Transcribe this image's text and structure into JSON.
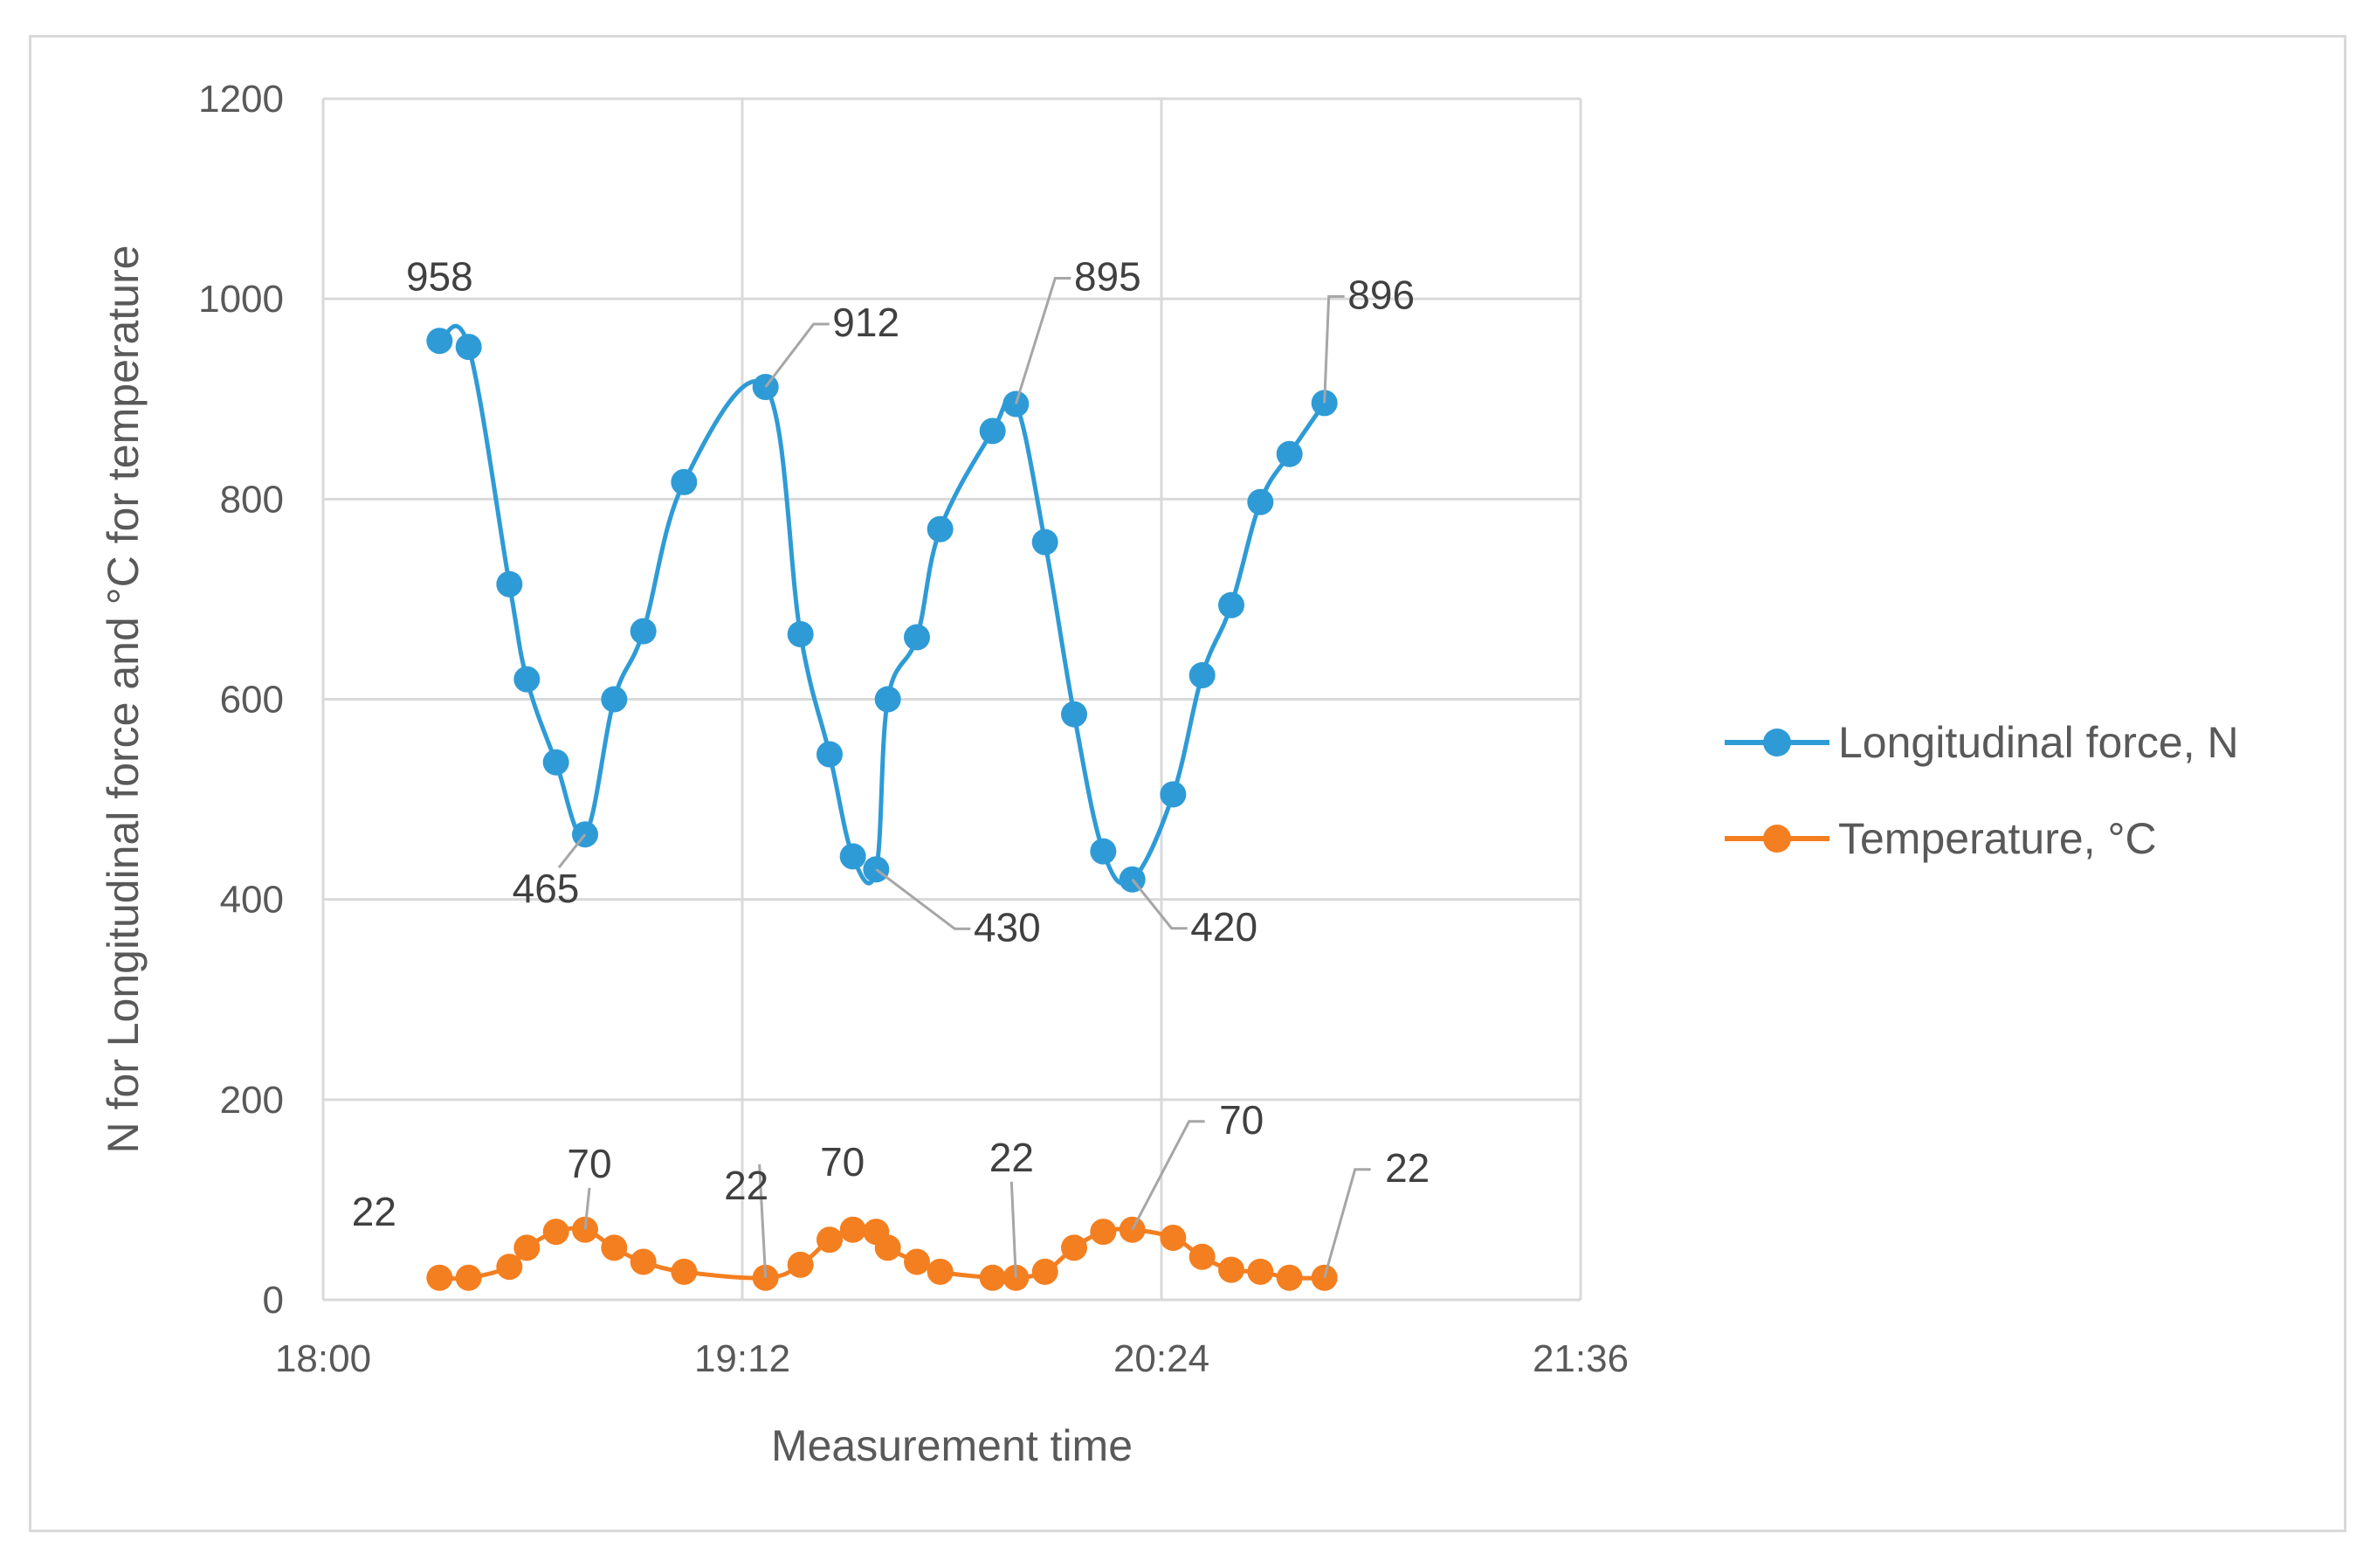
{
  "chart_data": {
    "type": "line",
    "title": "",
    "xlabel": "Measurement time",
    "ylabel": "N for Longitudinal force and °C for temperature",
    "xlim": [
      "18:00",
      "21:36"
    ],
    "ylim": [
      0,
      1200
    ],
    "x_ticks": [
      "18:00",
      "19:12",
      "20:24",
      "21:36"
    ],
    "y_ticks": [
      "0",
      "200",
      "400",
      "600",
      "800",
      "1000",
      "1200"
    ],
    "grid": true,
    "legend_position": "right",
    "series": [
      {
        "name": "Longitudinal force, N",
        "color": "#2e9bd6",
        "x": [
          "18:20",
          "18:25",
          "18:32",
          "18:35",
          "18:40",
          "18:45",
          "18:50",
          "18:55",
          "19:02",
          "19:16",
          "19:22",
          "19:27",
          "19:31",
          "19:35",
          "19:37",
          "19:42",
          "19:46",
          "19:55",
          "19:59",
          "20:04",
          "20:09",
          "20:14",
          "20:19",
          "20:26",
          "20:31",
          "20:36",
          "20:41",
          "20:46",
          "20:52"
        ],
        "y": [
          958,
          952,
          715,
          620,
          537,
          465,
          600,
          668,
          817,
          912,
          665,
          545,
          443,
          430,
          600,
          662,
          770,
          868,
          895,
          757,
          585,
          448,
          420,
          505,
          624,
          694,
          797,
          845,
          896
        ]
      },
      {
        "name": "Temperature, °C",
        "color": "#f47f20",
        "x": [
          "18:20",
          "18:25",
          "18:32",
          "18:35",
          "18:40",
          "18:45",
          "18:50",
          "18:55",
          "19:02",
          "19:16",
          "19:22",
          "19:27",
          "19:31",
          "19:35",
          "19:37",
          "19:42",
          "19:46",
          "19:55",
          "19:59",
          "20:04",
          "20:09",
          "20:14",
          "20:19",
          "20:26",
          "20:31",
          "20:36",
          "20:41",
          "20:46",
          "20:52"
        ],
        "y": [
          22,
          22,
          33,
          52,
          68,
          70,
          52,
          38,
          28,
          22,
          35,
          60,
          70,
          68,
          52,
          38,
          28,
          22,
          22,
          28,
          52,
          68,
          70,
          62,
          43,
          30,
          28,
          22,
          22
        ]
      }
    ],
    "annotations": [
      {
        "series": 0,
        "index": 0,
        "text": "958"
      },
      {
        "series": 0,
        "index": 5,
        "text": "465"
      },
      {
        "series": 0,
        "index": 9,
        "text": "912"
      },
      {
        "series": 0,
        "index": 13,
        "text": "430"
      },
      {
        "series": 0,
        "index": 18,
        "text": "895"
      },
      {
        "series": 0,
        "index": 22,
        "text": "420"
      },
      {
        "series": 0,
        "index": 28,
        "text": "896"
      },
      {
        "series": 1,
        "index": 0,
        "text": "22"
      },
      {
        "series": 1,
        "index": 5,
        "text": "70"
      },
      {
        "series": 1,
        "index": 9,
        "text": "22"
      },
      {
        "series": 1,
        "index": 12,
        "text": "70"
      },
      {
        "series": 1,
        "index": 18,
        "text": "22"
      },
      {
        "series": 1,
        "index": 22,
        "text": "70"
      },
      {
        "series": 1,
        "index": 28,
        "text": "22"
      }
    ]
  }
}
